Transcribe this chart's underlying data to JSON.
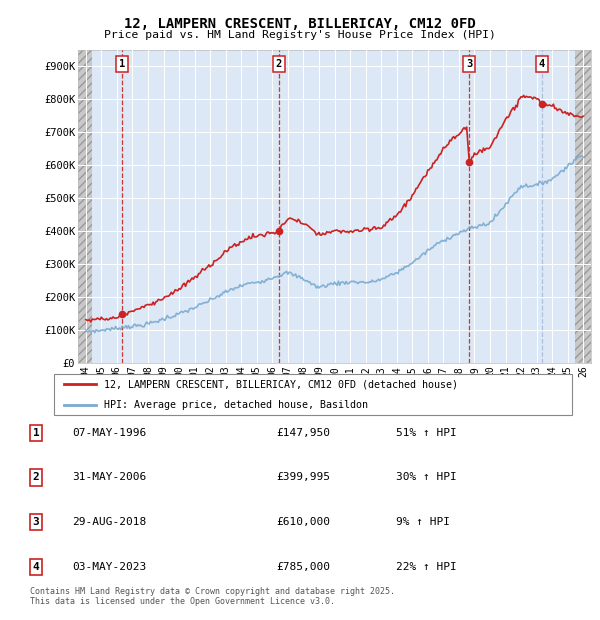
{
  "title": "12, LAMPERN CRESCENT, BILLERICAY, CM12 0FD",
  "subtitle": "Price paid vs. HM Land Registry's House Price Index (HPI)",
  "legend_line1": "12, LAMPERN CRESCENT, BILLERICAY, CM12 0FD (detached house)",
  "legend_line2": "HPI: Average price, detached house, Basildon",
  "footer_line1": "Contains HM Land Registry data © Crown copyright and database right 2025.",
  "footer_line2": "This data is licensed under the Open Government Licence v3.0.",
  "sales": [
    {
      "num": 1,
      "date": "07-MAY-1996",
      "price": 147950,
      "pct": "51%",
      "year": 1996.35
    },
    {
      "num": 2,
      "date": "31-MAY-2006",
      "price": 399995,
      "pct": "30%",
      "year": 2006.41
    },
    {
      "num": 3,
      "date": "29-AUG-2018",
      "price": 610000,
      "pct": "9%",
      "year": 2018.66
    },
    {
      "num": 4,
      "date": "03-MAY-2023",
      "price": 785000,
      "pct": "22%",
      "year": 2023.33
    }
  ],
  "sale_vline_colors": [
    "#cc2222",
    "#cc2222",
    "#cc2222",
    "#aabbdd"
  ],
  "hpi_color": "#7aaad0",
  "price_color": "#cc2222",
  "bg_chart": "#dce8f5",
  "grid_color": "#ffffff",
  "dashed_color": "#dd3333",
  "dashed_color4": "#aabbdd",
  "ylim": [
    0,
    950000
  ],
  "xlim_start": 1993.5,
  "xlim_end": 2026.5,
  "hatch_left_end": 1994.42,
  "hatch_right_start": 2025.5,
  "yticks": [
    0,
    100000,
    200000,
    300000,
    400000,
    500000,
    600000,
    700000,
    800000,
    900000
  ],
  "ytick_labels": [
    "£0",
    "£100K",
    "£200K",
    "£300K",
    "£400K",
    "£500K",
    "£600K",
    "£700K",
    "£800K",
    "£900K"
  ],
  "xtick_years": [
    1994,
    1995,
    1996,
    1997,
    1998,
    1999,
    2000,
    2001,
    2002,
    2003,
    2004,
    2005,
    2006,
    2007,
    2008,
    2009,
    2010,
    2011,
    2012,
    2013,
    2014,
    2015,
    2016,
    2017,
    2018,
    2019,
    2020,
    2021,
    2022,
    2023,
    2024,
    2025,
    2026
  ]
}
